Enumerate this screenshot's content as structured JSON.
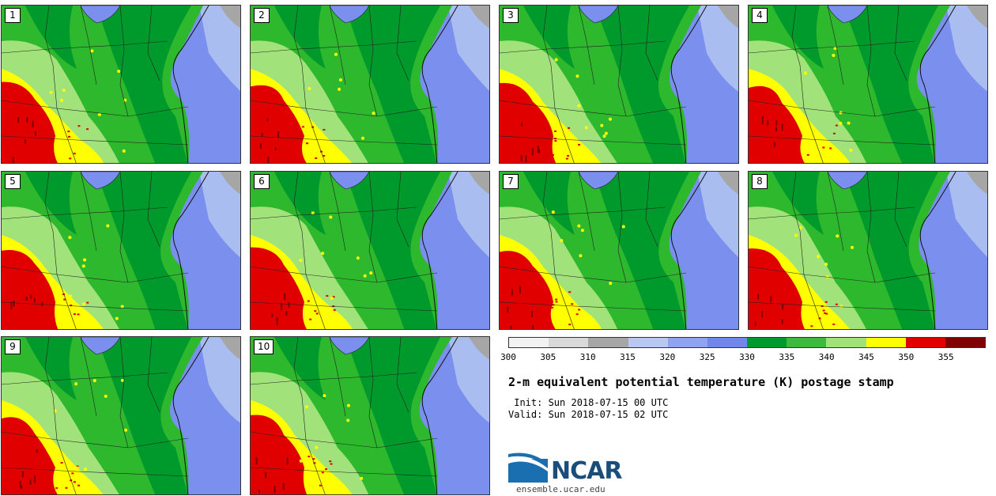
{
  "title": "2-m equivalent potential temperature (K) postage stamp",
  "init_line": " Init: Sun 2018-07-15 00 UTC",
  "valid_line": "Valid: Sun 2018-07-15 02 UTC",
  "logo": {
    "text": "NCAR",
    "url": "ensemble.ucar.edu"
  },
  "members": [
    "1",
    "2",
    "3",
    "4",
    "5",
    "6",
    "7",
    "8",
    "9",
    "10"
  ],
  "colorbar": {
    "ticks": [
      "300",
      "305",
      "310",
      "315",
      "320",
      "325",
      "330",
      "335",
      "340",
      "345",
      "350",
      "355"
    ],
    "colors": [
      "#f2f2f2",
      "#d9d9d9",
      "#a6a6a6",
      "#b9c8f2",
      "#8fa3ee",
      "#7088ea",
      "#009a2c",
      "#3fb83f",
      "#a2e27a",
      "#ffff00",
      "#e00000",
      "#800000"
    ]
  },
  "map_palette": {
    "ocean": "#7a8fee",
    "ocean_light": "#a9bdf0",
    "land_green": "#2db82d",
    "land_dark": "#009a2c",
    "land_light": "#a2e27a",
    "warm_yellow": "#ffff00",
    "hot_red": "#e00000",
    "hot_darkred": "#800000",
    "grey": "#a6a6a6"
  }
}
